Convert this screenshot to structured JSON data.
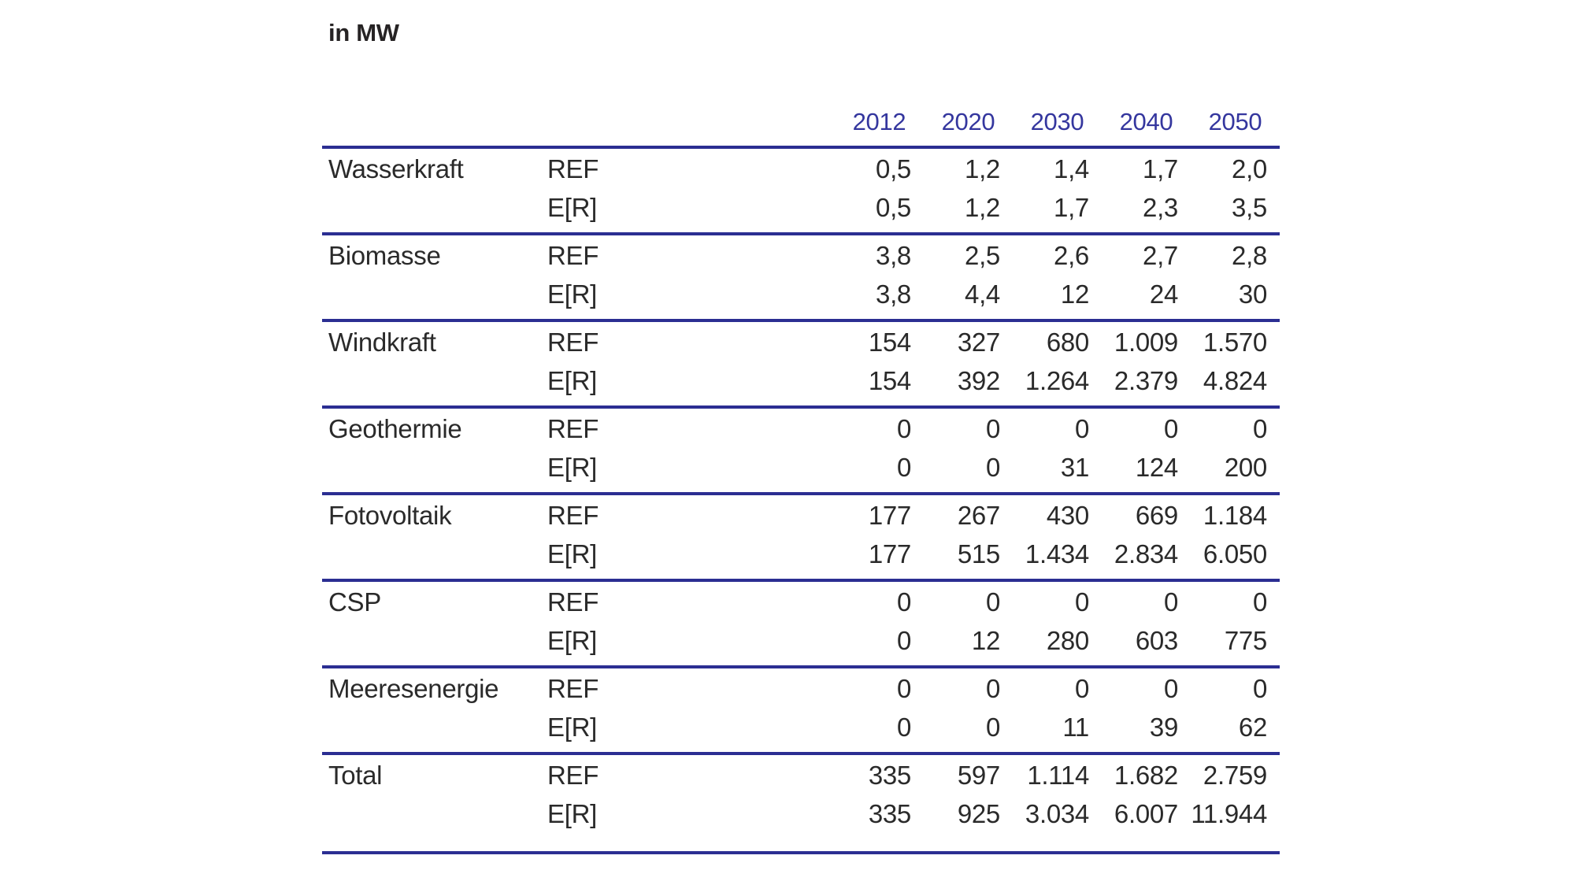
{
  "colors": {
    "rule_line": "#2b2e92",
    "year_header_text": "#34369e",
    "body_text": "#2a2a2a",
    "title_text": "#262324",
    "background": "#ffffff"
  },
  "chart_data": {
    "type": "table",
    "title": "in MW",
    "unit_note": "values are installed capacity in MW",
    "columns": [
      "2012",
      "2020",
      "2030",
      "2040",
      "2050"
    ],
    "scenarios": [
      "REF",
      "E[R]"
    ],
    "layout": {
      "rules": "horizontal navy rules below header, between category groups and at table end",
      "number_format": "German (comma decimal, dot thousands)"
    },
    "groups": [
      {
        "label": "Wasserkraft",
        "rows": [
          {
            "scenario": "REF",
            "values": [
              "0,5",
              "1,2",
              "1,4",
              "1,7",
              "2,0"
            ]
          },
          {
            "scenario": "E[R]",
            "values": [
              "0,5",
              "1,2",
              "1,7",
              "2,3",
              "3,5"
            ]
          }
        ]
      },
      {
        "label": "Biomasse",
        "rows": [
          {
            "scenario": "REF",
            "values": [
              "3,8",
              "2,5",
              "2,6",
              "2,7",
              "2,8"
            ]
          },
          {
            "scenario": "E[R]",
            "values": [
              "3,8",
              "4,4",
              "12",
              "24",
              "30"
            ]
          }
        ]
      },
      {
        "label": "Windkraft",
        "rows": [
          {
            "scenario": "REF",
            "values": [
              "154",
              "327",
              "680",
              "1.009",
              "1.570"
            ]
          },
          {
            "scenario": "E[R]",
            "values": [
              "154",
              "392",
              "1.264",
              "2.379",
              "4.824"
            ]
          }
        ]
      },
      {
        "label": "Geothermie",
        "rows": [
          {
            "scenario": "REF",
            "values": [
              "0",
              "0",
              "0",
              "0",
              "0"
            ]
          },
          {
            "scenario": "E[R]",
            "values": [
              "0",
              "0",
              "31",
              "124",
              "200"
            ]
          }
        ]
      },
      {
        "label": "Fotovoltaik",
        "rows": [
          {
            "scenario": "REF",
            "values": [
              "177",
              "267",
              "430",
              "669",
              "1.184"
            ]
          },
          {
            "scenario": "E[R]",
            "values": [
              "177",
              "515",
              "1.434",
              "2.834",
              "6.050"
            ]
          }
        ]
      },
      {
        "label": "CSP",
        "rows": [
          {
            "scenario": "REF",
            "values": [
              "0",
              "0",
              "0",
              "0",
              "0"
            ]
          },
          {
            "scenario": "E[R]",
            "values": [
              "0",
              "12",
              "280",
              "603",
              "775"
            ]
          }
        ]
      },
      {
        "label": "Meeresenergie",
        "rows": [
          {
            "scenario": "REF",
            "values": [
              "0",
              "0",
              "0",
              "0",
              "0"
            ]
          },
          {
            "scenario": "E[R]",
            "values": [
              "0",
              "0",
              "11",
              "39",
              "62"
            ]
          }
        ]
      },
      {
        "label": "Total",
        "rows": [
          {
            "scenario": "REF",
            "values": [
              "335",
              "597",
              "1.114",
              "1.682",
              "2.759"
            ]
          },
          {
            "scenario": "E[R]",
            "values": [
              "335",
              "925",
              "3.034",
              "6.007",
              "11.944"
            ]
          }
        ]
      }
    ]
  }
}
